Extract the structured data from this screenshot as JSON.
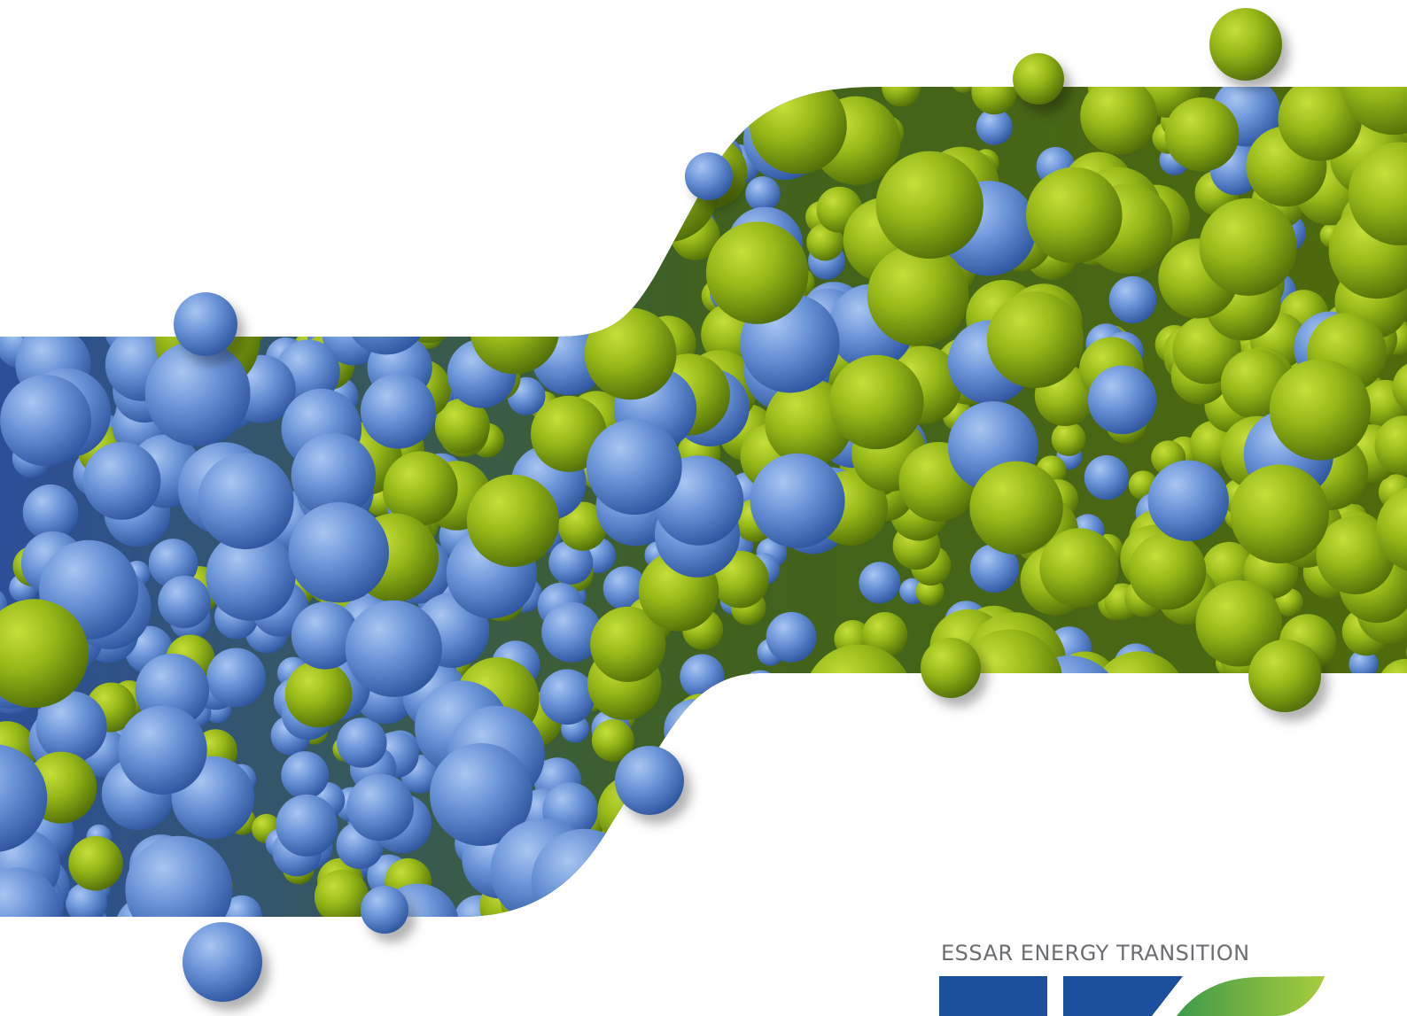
{
  "brand": {
    "name": "ESSAR ENERGY TRANSITION",
    "text_color": "#6b6e72",
    "logo_icon": "eet-logo-mark"
  },
  "colors": {
    "background": "#ffffff",
    "blue_sphere": "#5b86d0",
    "green_sphere": "#8fb11a",
    "logo_blue": "#1c4f9c",
    "logo_green": "#8cbf3f"
  },
  "artwork": {
    "subject": "band-of-blue-and-green-spheres"
  }
}
